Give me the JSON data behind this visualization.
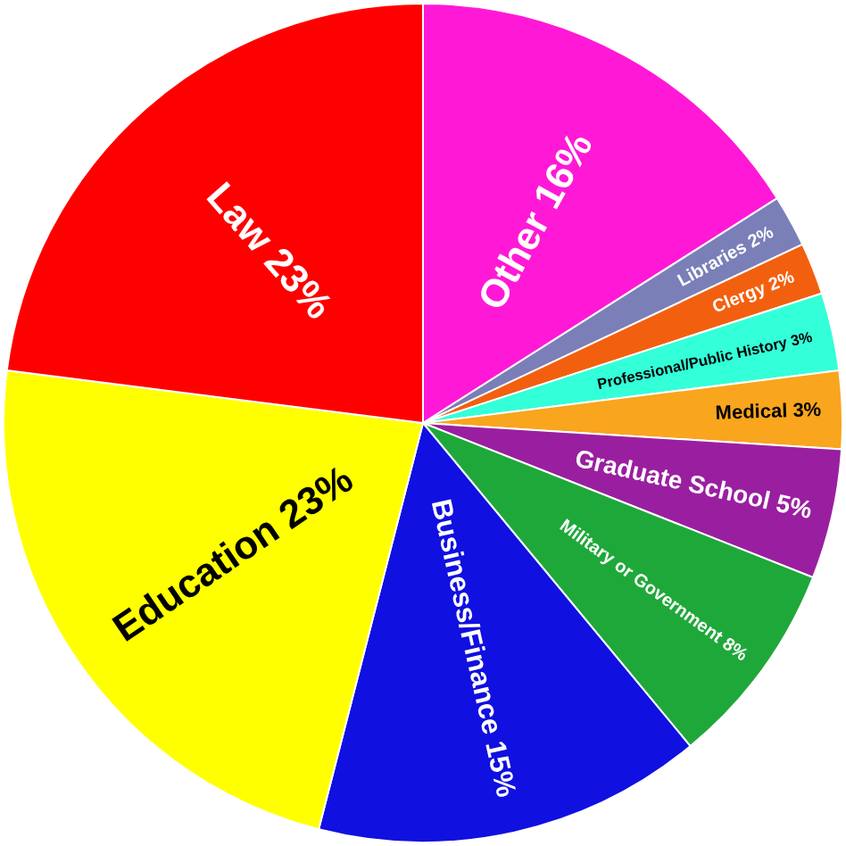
{
  "chart_data": {
    "type": "pie",
    "categories": [
      "Other",
      "Libraries",
      "Clergy",
      "Professional/Public History",
      "Medical",
      "Graduate School",
      "Military or Government",
      "Business/Finance",
      "Education",
      "Law"
    ],
    "values": [
      16,
      2,
      2,
      3,
      3,
      5,
      8,
      15,
      23,
      23
    ],
    "colors": [
      "#ff19d6",
      "#7a7fb8",
      "#f2600f",
      "#33ffd8",
      "#f9a51d",
      "#9a1fa0",
      "#1fa83a",
      "#1010e0",
      "#ffff00",
      "#ff0000"
    ],
    "value_labels": [
      "16%",
      "2%",
      "2%",
      "3%",
      "3%",
      "5%",
      "8%",
      "15%",
      "23%",
      "23%"
    ]
  }
}
